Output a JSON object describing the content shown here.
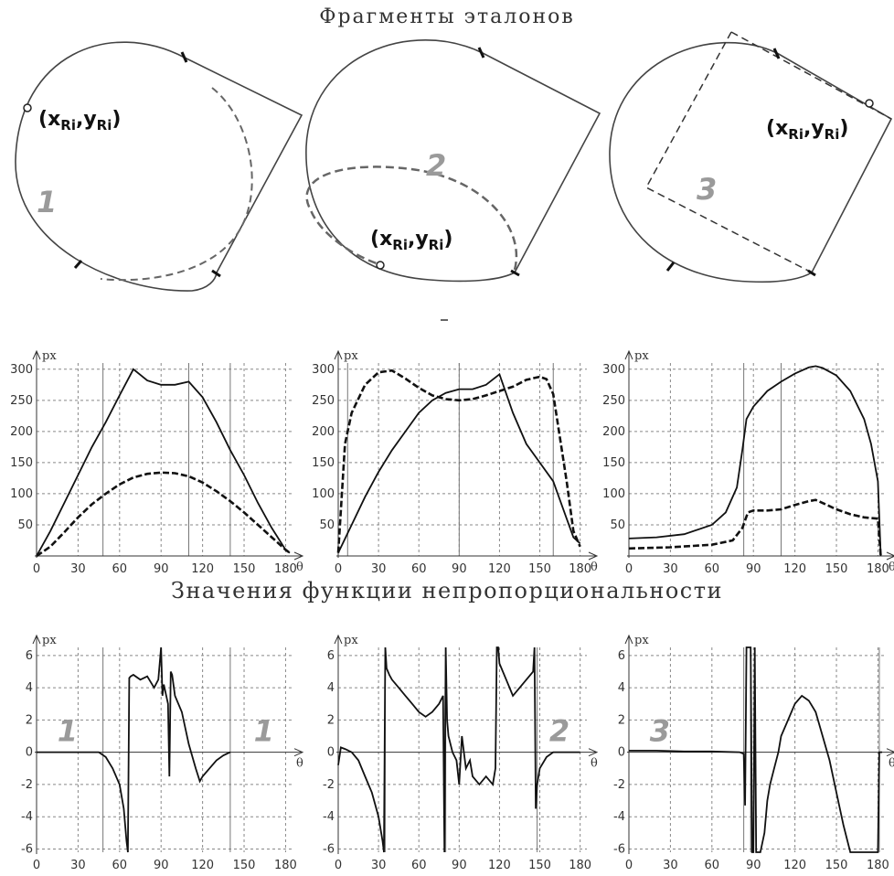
{
  "headings": {
    "top": "Фрагменты эталонов",
    "middle": "Значения функции непропорциональности"
  },
  "shapes": [
    {
      "number": "1",
      "point_label": {
        "x": "x",
        "y": "y",
        "sub": "Ri"
      }
    },
    {
      "number": "2",
      "point_label": {
        "x": "x",
        "y": "y",
        "sub": "Ri"
      }
    },
    {
      "number": "3",
      "point_label": {
        "x": "x",
        "y": "y",
        "sub": "Ri"
      }
    }
  ],
  "chart_data": [
    {
      "type": "line",
      "ylabel": "px",
      "xlabel": "θ",
      "xlim": [
        0,
        185
      ],
      "ylim": [
        0,
        310
      ],
      "xticks": [
        0,
        30,
        60,
        90,
        120,
        150,
        180
      ],
      "yticks": [
        50,
        100,
        150,
        200,
        250,
        300
      ],
      "vlines": [
        48,
        110,
        140
      ],
      "series": [
        {
          "style": "solid",
          "x": [
            0,
            10,
            20,
            30,
            40,
            50,
            60,
            70,
            80,
            90,
            100,
            110,
            120,
            130,
            140,
            150,
            160,
            170,
            180,
            183
          ],
          "y": [
            0,
            40,
            85,
            130,
            175,
            215,
            258,
            300,
            282,
            275,
            275,
            280,
            255,
            215,
            170,
            130,
            85,
            45,
            10,
            5
          ]
        },
        {
          "style": "dashed",
          "x": [
            0,
            10,
            20,
            30,
            40,
            50,
            60,
            70,
            80,
            90,
            100,
            110,
            120,
            130,
            140,
            150,
            160,
            170,
            180,
            183
          ],
          "y": [
            0,
            15,
            38,
            62,
            83,
            100,
            115,
            126,
            132,
            134,
            133,
            128,
            118,
            104,
            88,
            70,
            50,
            30,
            10,
            5
          ]
        }
      ]
    },
    {
      "type": "line",
      "ylabel": "px",
      "xlabel": "θ",
      "xlim": [
        0,
        185
      ],
      "ylim": [
        0,
        310
      ],
      "xticks": [
        0,
        30,
        60,
        90,
        120,
        150,
        180
      ],
      "yticks": [
        50,
        100,
        150,
        200,
        250,
        300
      ],
      "vlines": [
        7,
        90,
        160
      ],
      "series": [
        {
          "style": "solid",
          "x": [
            0,
            10,
            20,
            30,
            40,
            50,
            60,
            70,
            80,
            90,
            100,
            110,
            120,
            130,
            140,
            150,
            160,
            170,
            175,
            180
          ],
          "y": [
            5,
            50,
            95,
            135,
            170,
            200,
            230,
            250,
            262,
            268,
            268,
            275,
            292,
            230,
            180,
            150,
            120,
            60,
            30,
            20
          ]
        },
        {
          "style": "dashed",
          "x": [
            0,
            5,
            10,
            20,
            30,
            40,
            50,
            60,
            70,
            80,
            90,
            100,
            110,
            120,
            130,
            140,
            150,
            155,
            160,
            170,
            175,
            180
          ],
          "y": [
            5,
            180,
            230,
            275,
            295,
            298,
            285,
            270,
            258,
            252,
            250,
            252,
            258,
            265,
            272,
            283,
            288,
            284,
            260,
            120,
            40,
            15
          ]
        }
      ]
    },
    {
      "type": "line",
      "ylabel": "px",
      "xlabel": "θ",
      "xlim": [
        0,
        185
      ],
      "ylim": [
        0,
        310
      ],
      "xticks": [
        0,
        30,
        60,
        90,
        120,
        150,
        180
      ],
      "yticks": [
        50,
        100,
        150,
        200,
        250,
        300
      ],
      "vlines": [
        83,
        110
      ],
      "series": [
        {
          "style": "solid",
          "x": [
            0,
            20,
            40,
            60,
            70,
            78,
            82,
            85,
            90,
            100,
            110,
            120,
            130,
            135,
            140,
            150,
            160,
            170,
            175,
            180,
            182
          ],
          "y": [
            28,
            30,
            35,
            50,
            70,
            110,
            170,
            220,
            240,
            265,
            280,
            293,
            303,
            305,
            302,
            290,
            265,
            220,
            180,
            120,
            0
          ]
        },
        {
          "style": "dashed",
          "x": [
            0,
            30,
            60,
            75,
            82,
            86,
            90,
            100,
            110,
            120,
            130,
            135,
            140,
            150,
            160,
            170,
            180,
            182
          ],
          "y": [
            12,
            14,
            18,
            25,
            45,
            70,
            73,
            73,
            75,
            82,
            88,
            90,
            85,
            75,
            67,
            62,
            60,
            0
          ]
        }
      ]
    },
    {
      "type": "line",
      "ylabel": "px",
      "xlabel": "θ",
      "region_left": "1",
      "region_right": "1",
      "xlim": [
        0,
        185
      ],
      "ylim": [
        -6.2,
        6.5
      ],
      "xticks": [
        0,
        30,
        60,
        90,
        120,
        150,
        180
      ],
      "yticks": [
        -6,
        -4,
        -2,
        0,
        2,
        4,
        6
      ],
      "vlines": [
        48,
        140
      ],
      "series": [
        {
          "style": "solid",
          "x": [
            0,
            45,
            50,
            55,
            60,
            63,
            65,
            66,
            67,
            68,
            70,
            75,
            80,
            85,
            88,
            90,
            91,
            92,
            95,
            96,
            97,
            98,
            100,
            105,
            110,
            115,
            118,
            120,
            125,
            130,
            135,
            140
          ],
          "y": [
            0,
            0,
            -0.3,
            -1.0,
            -2.0,
            -3.5,
            -5.5,
            -6.2,
            4.6,
            4.7,
            4.8,
            4.5,
            4.7,
            4.0,
            4.5,
            6.5,
            3.5,
            4.2,
            3.0,
            -1.5,
            5.0,
            4.8,
            3.5,
            2.5,
            0.5,
            -1.0,
            -1.8,
            -1.5,
            -1.0,
            -0.5,
            -0.2,
            0
          ]
        }
      ]
    },
    {
      "type": "line",
      "ylabel": "px",
      "xlabel": "θ",
      "region_right": "2",
      "xlim": [
        0,
        185
      ],
      "ylim": [
        -6.2,
        6.5
      ],
      "xticks": [
        0,
        30,
        60,
        90,
        120,
        150,
        180
      ],
      "yticks": [
        -6,
        -4,
        -2,
        0,
        2,
        4,
        6
      ],
      "vlines": [
        35,
        80,
        148
      ],
      "series": [
        {
          "style": "solid",
          "x": [
            0,
            2,
            5,
            10,
            15,
            20,
            25,
            30,
            33,
            34,
            35,
            36,
            38,
            40,
            45,
            50,
            55,
            60,
            65,
            70,
            75,
            78,
            79,
            80,
            81,
            82,
            85,
            88,
            90,
            92,
            95,
            98,
            100,
            105,
            110,
            115,
            117,
            118,
            119,
            120,
            125,
            130,
            135,
            140,
            145,
            146,
            147,
            148,
            150,
            155,
            160,
            170,
            180
          ],
          "y": [
            -0.8,
            0.3,
            0.2,
            0.0,
            -0.5,
            -1.5,
            -2.5,
            -4.0,
            -5.5,
            -6.2,
            6.5,
            5.2,
            4.8,
            4.5,
            4.0,
            3.5,
            3.0,
            2.5,
            2.2,
            2.5,
            3.0,
            3.5,
            -6.2,
            6.5,
            2.0,
            1.0,
            0.0,
            -0.5,
            -2.0,
            1.0,
            -1.0,
            -0.5,
            -1.5,
            -2.0,
            -1.5,
            -2.0,
            -1.0,
            6.5,
            6.5,
            5.5,
            4.5,
            3.5,
            4.0,
            4.5,
            5.0,
            6.5,
            -3.5,
            -2.0,
            -1.0,
            -0.3,
            0.0,
            0.0,
            0.0
          ]
        }
      ]
    },
    {
      "type": "line",
      "ylabel": "px",
      "xlabel": "θ",
      "region_left": "3",
      "xlim": [
        0,
        185
      ],
      "ylim": [
        -6.2,
        6.5
      ],
      "xticks": [
        0,
        30,
        60,
        90,
        120,
        150,
        180
      ],
      "yticks": [
        -6,
        -4,
        -2,
        0,
        2,
        4,
        6
      ],
      "vlines": [
        83,
        88,
        181
      ],
      "series": [
        {
          "style": "solid",
          "x": [
            0,
            20,
            40,
            60,
            80,
            83,
            84,
            85,
            86,
            87,
            88,
            89,
            90,
            91,
            92,
            95,
            98,
            100,
            102,
            105,
            108,
            110,
            115,
            120,
            125,
            130,
            135,
            140,
            145,
            150,
            155,
            160,
            163,
            165,
            180,
            181,
            183
          ],
          "y": [
            0.1,
            0.1,
            0.05,
            0.05,
            0.0,
            -0.1,
            -3.3,
            6.5,
            6.5,
            6.5,
            6.5,
            -6.2,
            -6.2,
            6.5,
            -6.2,
            -6.2,
            -5.0,
            -3.0,
            -2.0,
            -1.0,
            0.0,
            1.0,
            2.0,
            3.0,
            3.5,
            3.2,
            2.5,
            1.0,
            -0.5,
            -2.5,
            -4.5,
            -6.2,
            -6.2,
            -6.2,
            -6.2,
            0,
            0
          ]
        }
      ]
    }
  ]
}
